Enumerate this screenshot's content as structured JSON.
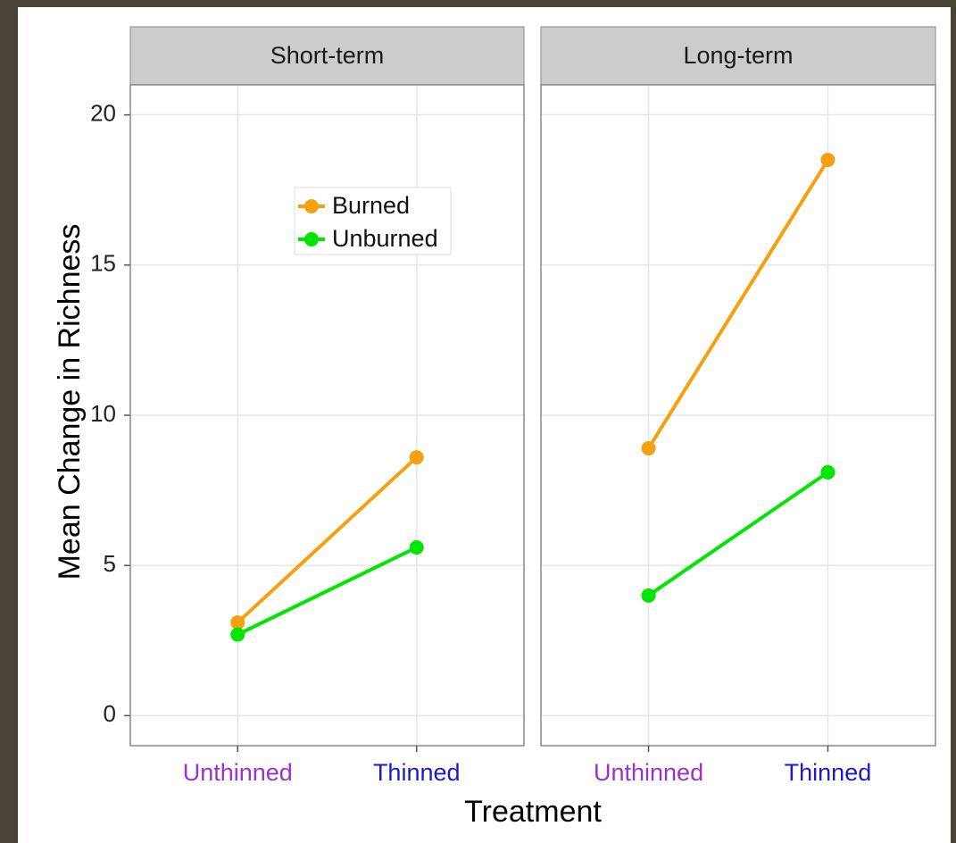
{
  "chart_data": {
    "type": "line",
    "ylabel": "Mean Change in Richness",
    "xlabel": "Treatment",
    "categories": [
      "Unthinned",
      "Thinned"
    ],
    "category_colors": [
      "#9933cc",
      "#1a1acc"
    ],
    "ylim": [
      -1,
      21
    ],
    "yticks": [
      0,
      5,
      10,
      15,
      20
    ],
    "grid": true,
    "panels": [
      {
        "title": "Short-term",
        "series": [
          {
            "name": "Burned",
            "color": "#f5a00f",
            "values": [
              3.1,
              8.6
            ]
          },
          {
            "name": "Unburned",
            "color": "#00e600",
            "values": [
              2.7,
              5.6
            ]
          }
        ]
      },
      {
        "title": "Long-term",
        "series": [
          {
            "name": "Burned",
            "color": "#f5a00f",
            "values": [
              8.9,
              18.5
            ]
          },
          {
            "name": "Unburned",
            "color": "#00e600",
            "values": [
              4.0,
              8.1
            ]
          }
        ]
      }
    ]
  }
}
